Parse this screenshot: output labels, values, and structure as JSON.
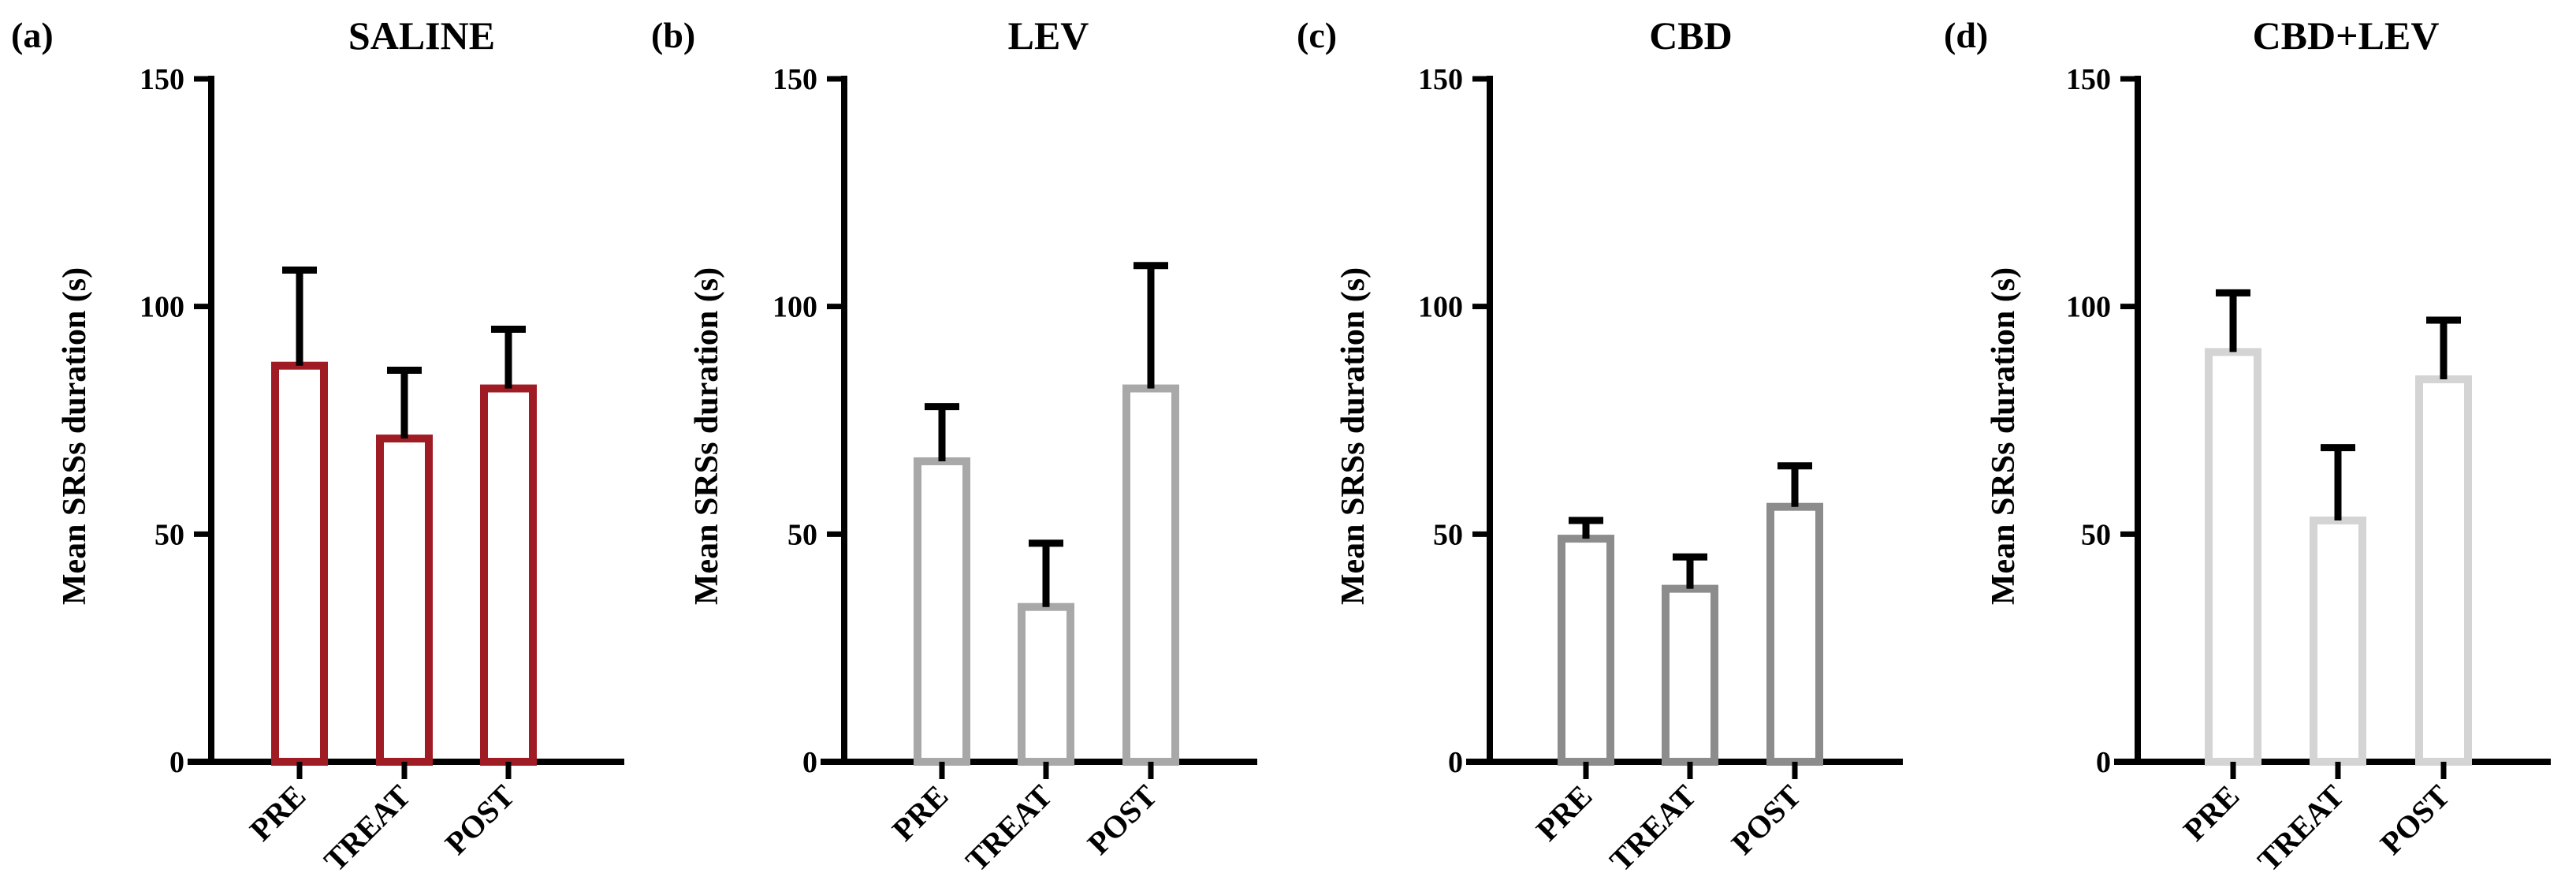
{
  "chart_data": [
    {
      "type": "bar",
      "panel_label": "(a)",
      "title": "SALINE",
      "ylabel": "Mean SRSs duration (s)",
      "xlabel": "",
      "ylim": [
        0,
        150
      ],
      "yticks": [
        "0",
        "50",
        "100",
        "150"
      ],
      "categories": [
        "PRE",
        "TREAT",
        "POST"
      ],
      "values": [
        87,
        71,
        82
      ],
      "error_upper": [
        108,
        86,
        95
      ],
      "color": "#a01c24"
    },
    {
      "type": "bar",
      "panel_label": "(b)",
      "title": "LEV",
      "ylabel": "Mean SRSs duration (s)",
      "xlabel": "",
      "ylim": [
        0,
        150
      ],
      "yticks": [
        "0",
        "50",
        "100",
        "150"
      ],
      "categories": [
        "PRE",
        "TREAT",
        "POST"
      ],
      "values": [
        66,
        34,
        82
      ],
      "error_upper": [
        78,
        48,
        109
      ],
      "color": "#a8a8a8"
    },
    {
      "type": "bar",
      "panel_label": "(c)",
      "title": "CBD",
      "ylabel": "Mean SRSs duration (s)",
      "xlabel": "",
      "ylim": [
        0,
        150
      ],
      "yticks": [
        "0",
        "50",
        "100",
        "150"
      ],
      "categories": [
        "PRE",
        "TREAT",
        "POST"
      ],
      "values": [
        49,
        38,
        56
      ],
      "error_upper": [
        53,
        45,
        65
      ],
      "color": "#8c8c8c"
    },
    {
      "type": "bar",
      "panel_label": "(d)",
      "title": "CBD+LEV",
      "ylabel": "Mean SRSs duration (s)",
      "xlabel": "",
      "ylim": [
        0,
        150
      ],
      "yticks": [
        "0",
        "50",
        "100",
        "150"
      ],
      "categories": [
        "PRE",
        "TREAT",
        "POST"
      ],
      "values": [
        90,
        53,
        84
      ],
      "error_upper": [
        103,
        69,
        97
      ],
      "color": "#d4d4d4"
    }
  ]
}
